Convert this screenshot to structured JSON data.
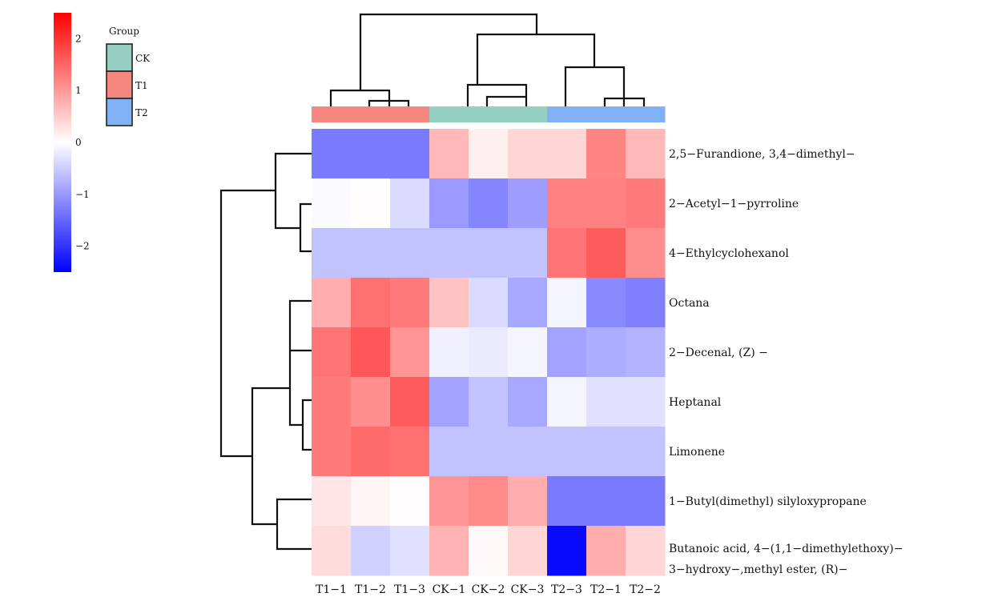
{
  "chart_data": {
    "type": "heatmap",
    "columns": [
      "T1-1",
      "T1-2",
      "T1-3",
      "CK-1",
      "CK-2",
      "CK-3",
      "T2-3",
      "T2-1",
      "T2-2"
    ],
    "column_display": [
      "T1−1",
      "T1−2",
      "T1−3",
      "CK−1",
      "CK−2",
      "CK−3",
      "T2−3",
      "T2−1",
      "T2−2"
    ],
    "column_groups": [
      "T1",
      "T1",
      "T1",
      "CK",
      "CK",
      "CK",
      "T2",
      "T2",
      "T2"
    ],
    "rows": [
      {
        "label": "2,5−Furandione, 3,4−dimethyl−"
      },
      {
        "label": "2−Acetyl−1−pyrroline"
      },
      {
        "label": "4−Ethylcyclohexanol"
      },
      {
        "label": "Octana"
      },
      {
        "label": "2−Decenal, (Z) −"
      },
      {
        "label": "Heptanal"
      },
      {
        "label": "Limonene"
      },
      {
        "label": "1−Butyl(dimethyl) silyloxypropane"
      },
      {
        "label": "Butanoic acid, 4−(1,1−dimethylethoxy)−",
        "label2": "3−hydroxy−,methyl ester, (R)−"
      }
    ],
    "values": [
      [
        -1.3,
        -1.3,
        -1.3,
        0.7,
        0.15,
        0.4,
        0.4,
        1.2,
        0.7
      ],
      [
        -0.05,
        0.02,
        -0.35,
        -1.0,
        -1.2,
        -0.95,
        1.25,
        1.25,
        1.3
      ],
      [
        -0.6,
        -0.6,
        -0.6,
        -0.6,
        -0.6,
        -0.6,
        1.35,
        1.6,
        1.1
      ],
      [
        0.8,
        1.4,
        1.3,
        0.6,
        -0.35,
        -0.85,
        -0.1,
        -1.15,
        -1.25
      ],
      [
        1.35,
        1.65,
        1.05,
        -0.15,
        -0.2,
        -0.1,
        -0.9,
        -0.8,
        -0.75
      ],
      [
        1.3,
        1.1,
        1.6,
        -0.9,
        -0.6,
        -0.85,
        -0.1,
        -0.3,
        -0.3
      ],
      [
        1.3,
        1.45,
        1.4,
        -0.6,
        -0.6,
        -0.6,
        -0.6,
        -0.6,
        -0.6
      ],
      [
        0.25,
        0.1,
        0.02,
        1.05,
        1.15,
        0.8,
        -1.3,
        -1.3,
        -1.3
      ],
      [
        0.35,
        -0.45,
        -0.3,
        0.75,
        0.05,
        0.4,
        -2.4,
        0.8,
        0.4
      ]
    ],
    "colorbar": {
      "ticks": [
        2,
        1,
        0,
        -1,
        -2
      ],
      "tick_display": [
        "2",
        "1",
        "0",
        "−1",
        "−2"
      ],
      "range": [
        -2.5,
        2.5
      ],
      "colors": {
        "low": "#0000ff",
        "mid": "#ffffff",
        "high": "#ff0000"
      }
    },
    "group_legend": {
      "title": "Group",
      "items": [
        {
          "name": "CK",
          "color": "#95cfc2"
        },
        {
          "name": "T1",
          "color": "#f5877e"
        },
        {
          "name": "T2",
          "color": "#80b1f5"
        }
      ]
    }
  }
}
